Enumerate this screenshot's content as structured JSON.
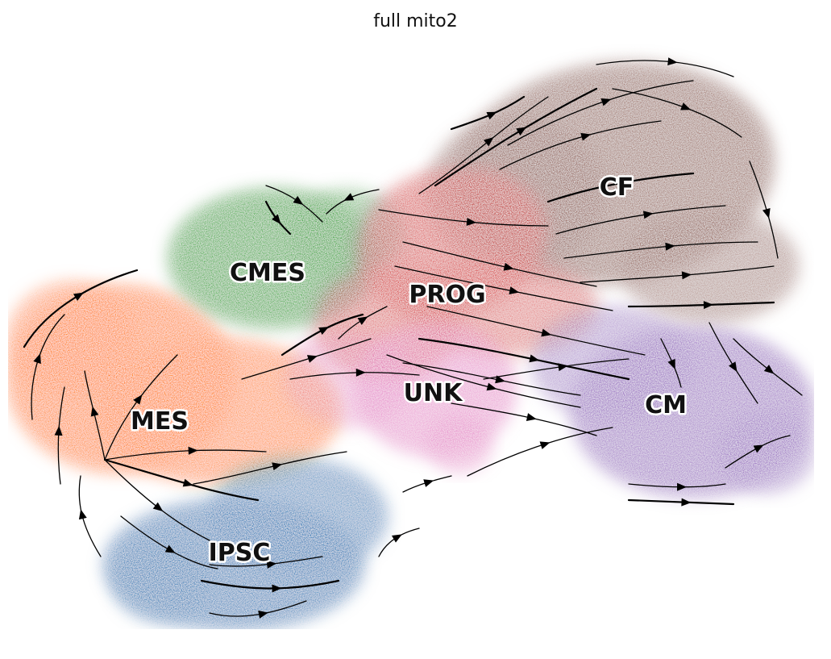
{
  "chart_data": {
    "type": "scatter",
    "subtype": "embedding with velocity streamlines",
    "title": "full mito2",
    "xlabel": "",
    "ylabel": "",
    "axes_visible": false,
    "grid": false,
    "legend": "on data",
    "clusters": [
      {
        "name": "CMES",
        "color": "#2ca02c"
      },
      {
        "name": "PROG",
        "color": "#d62728"
      },
      {
        "name": "CF",
        "color": "#8c564b"
      },
      {
        "name": "MES",
        "color": "#ff7f0e"
      },
      {
        "name": "UNK",
        "color": "#e377c2"
      },
      {
        "name": "CM",
        "color": "#9467bd"
      },
      {
        "name": "IPSC",
        "color": "#1f77b4"
      }
    ],
    "streamline_color": "#000000"
  }
}
